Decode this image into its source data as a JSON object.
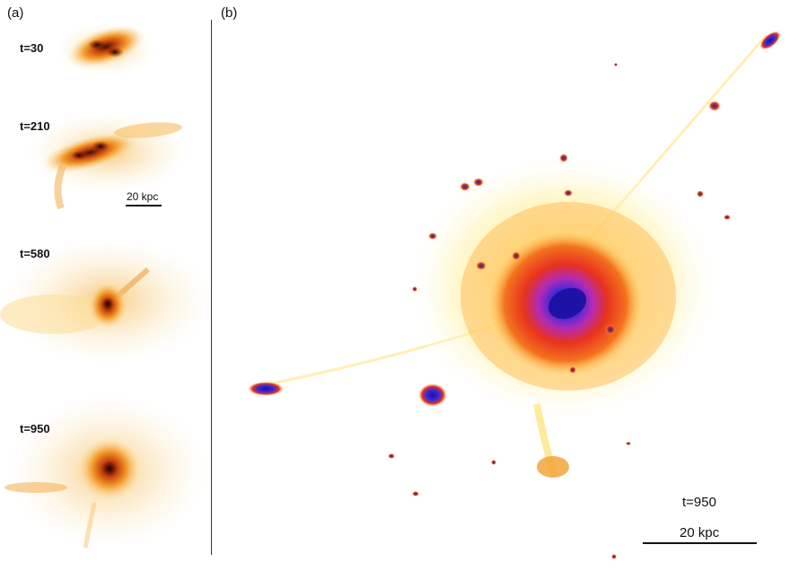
{
  "panel_a": {
    "label": "(a)",
    "frames": [
      {
        "time": "t=30"
      },
      {
        "time": "t=210"
      },
      {
        "time": "t=580"
      },
      {
        "time": "t=950"
      }
    ],
    "scale_label": "20 kpc"
  },
  "panel_b": {
    "label": "(b)",
    "time": "t=950",
    "scale_label": "20 kpc"
  },
  "colors": {
    "faint": "#ffd84a",
    "mid": "#f39a2b",
    "hot": "#e8321e",
    "core": "#3a2ad8",
    "center": "#1a10a0"
  }
}
